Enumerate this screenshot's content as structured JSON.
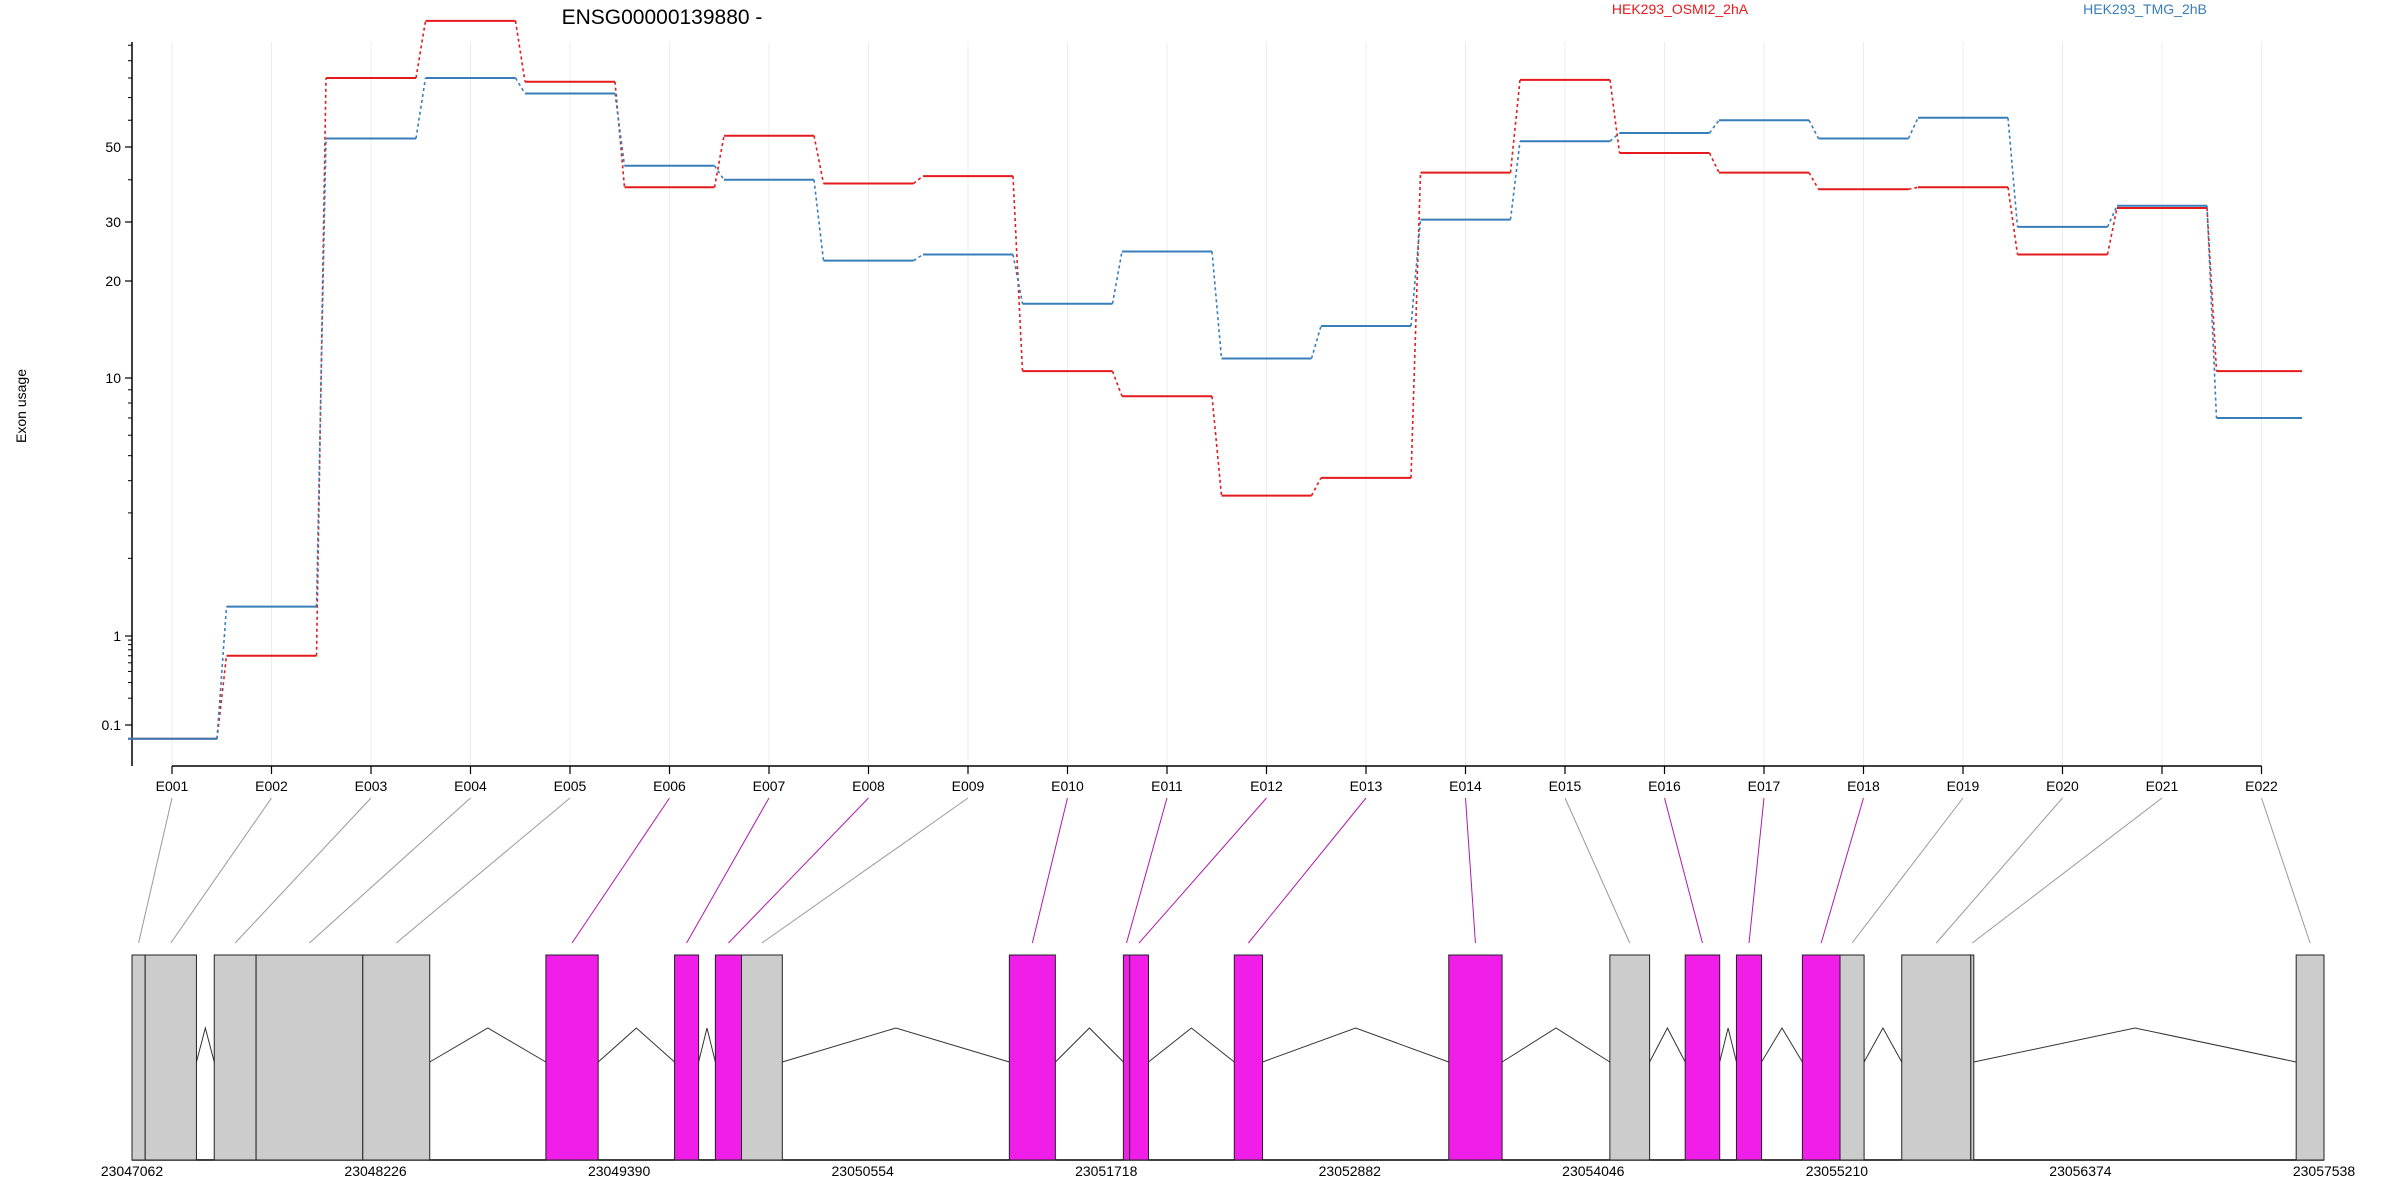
{
  "chart_data": {
    "type": "line",
    "title": "ENSG00000139880 -",
    "xlabel": "",
    "ylabel": "Exon usage",
    "y_scale": "log",
    "y_ticks": [
      "0.1",
      "1",
      "10",
      "20",
      "30",
      "50"
    ],
    "y_tick_values": [
      0.1,
      1,
      10,
      20,
      30,
      50
    ],
    "categories": [
      "E001",
      "E002",
      "E003",
      "E004",
      "E005",
      "E006",
      "E007",
      "E008",
      "E009",
      "E010",
      "E011",
      "E012",
      "E013",
      "E014",
      "E015",
      "E016",
      "E017",
      "E018",
      "E019",
      "E020",
      "E021",
      "E022"
    ],
    "series": [
      {
        "name": "HEK293_OSMI2_2hA",
        "color": "#e41a1c",
        "values": [
          0.07,
          0.6,
          80,
          118,
          78,
          38,
          54,
          39,
          41,
          10.5,
          8.5,
          3.5,
          4.1,
          42,
          79,
          48,
          42,
          37.5,
          38,
          24,
          33,
          10.5
        ]
      },
      {
        "name": "HEK293_TMG_2hB",
        "color": "#377eb8",
        "values": [
          0.07,
          1.3,
          53,
          80,
          72,
          44,
          40,
          23,
          24,
          17,
          24.5,
          11.5,
          14.5,
          30.5,
          52,
          55,
          60,
          53,
          61,
          29,
          33.5,
          7
        ]
      }
    ],
    "genomic_axis_ticks": [
      "23047062",
      "23048226",
      "23049390",
      "23050554",
      "23051718",
      "23052882",
      "23054046",
      "23055210",
      "23056374",
      "23057538"
    ],
    "genomic_range": [
      23047062,
      23057538
    ],
    "exons": [
      {
        "id": "E001",
        "start": 23047062,
        "end": 23047125,
        "color": "#cccccc"
      },
      {
        "id": "E002",
        "start": 23047125,
        "end": 23047370,
        "color": "#cccccc"
      },
      {
        "id": "E003",
        "start": 23047455,
        "end": 23047655,
        "color": "#cccccc"
      },
      {
        "id": "E004",
        "start": 23047655,
        "end": 23048165,
        "color": "#cccccc"
      },
      {
        "id": "E005",
        "start": 23048165,
        "end": 23048485,
        "color": "#cccccc"
      },
      {
        "id": "E006",
        "start": 23049040,
        "end": 23049290,
        "color": "#f01ee8"
      },
      {
        "id": "E007",
        "start": 23049655,
        "end": 23049770,
        "color": "#f01ee8"
      },
      {
        "id": "E008",
        "start": 23049850,
        "end": 23049975,
        "color": "#f01ee8"
      },
      {
        "id": "E009",
        "start": 23049975,
        "end": 23050170,
        "color": "#cccccc"
      },
      {
        "id": "E010",
        "start": 23051255,
        "end": 23051475,
        "color": "#f01ee8"
      },
      {
        "id": "E011",
        "start": 23051800,
        "end": 23051830,
        "color": "#f01ee8"
      },
      {
        "id": "E012",
        "start": 23051830,
        "end": 23051920,
        "color": "#f01ee8"
      },
      {
        "id": "E013",
        "start": 23052330,
        "end": 23052465,
        "color": "#f01ee8"
      },
      {
        "id": "E014",
        "start": 23053355,
        "end": 23053610,
        "color": "#f01ee8"
      },
      {
        "id": "E015",
        "start": 23054125,
        "end": 23054315,
        "color": "#cccccc"
      },
      {
        "id": "E016",
        "start": 23054485,
        "end": 23054650,
        "color": "#f01ee8"
      },
      {
        "id": "E017",
        "start": 23054730,
        "end": 23054850,
        "color": "#f01ee8"
      },
      {
        "id": "E018",
        "start": 23055045,
        "end": 23055225,
        "color": "#f01ee8"
      },
      {
        "id": "E019",
        "start": 23055225,
        "end": 23055340,
        "color": "#cccccc"
      },
      {
        "id": "E020",
        "start": 23055520,
        "end": 23055850,
        "color": "#cccccc"
      },
      {
        "id": "E021",
        "start": 23055850,
        "end": 23055850,
        "color": "#cccccc"
      },
      {
        "id": "E022",
        "start": 23057405,
        "end": 23057538,
        "color": "#cccccc"
      }
    ],
    "legend_placement": "top",
    "grid": true
  }
}
